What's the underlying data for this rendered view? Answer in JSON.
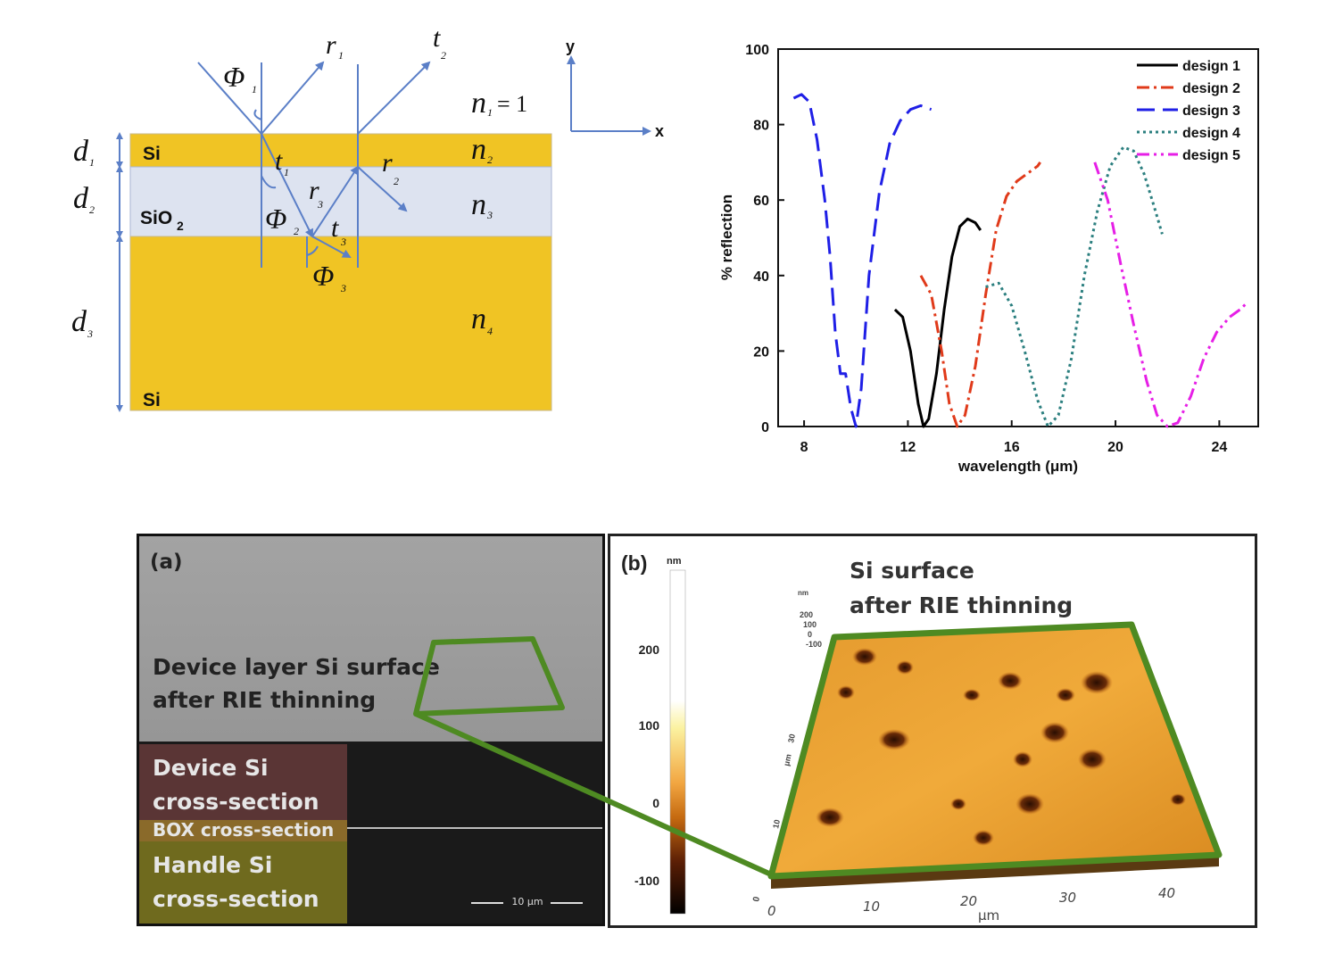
{
  "diagram": {
    "layers": [
      {
        "material": "Si",
        "thickness": "d1",
        "index": "n2"
      },
      {
        "material": "SiO2",
        "thickness": "d2",
        "index": "n3"
      },
      {
        "material": "Si",
        "thickness": "d3",
        "index": "n4"
      }
    ],
    "ambient_index": "n1 = 1",
    "labels": {
      "phi1": "Φ",
      "phi1_sub": "1",
      "phi2": "Φ",
      "phi2_sub": "2",
      "phi3": "Φ",
      "phi3_sub": "3",
      "r1": "r",
      "r1_sub": "1",
      "t2": "t",
      "t2_sub": "2",
      "t1": "t",
      "t1_sub": "1",
      "r2": "r",
      "r2_sub": "2",
      "r3": "r",
      "r3_sub": "3",
      "t3": "t",
      "t3_sub": "3",
      "n1": "n",
      "n1_sub": "1",
      "n1_eq": "= 1",
      "n2": "n",
      "n2_sub": "2",
      "n3": "n",
      "n3_sub": "3",
      "n4": "n",
      "n4_sub": "4",
      "d1": "d",
      "d1_sub": "1",
      "d2": "d",
      "d2_sub": "2",
      "d3": "d",
      "d3_sub": "3",
      "si_top": "Si",
      "sio2": "SiO",
      "sio2_sub": "2",
      "si_bottom": "Si"
    },
    "axes": {
      "x": "x",
      "y": "y"
    },
    "colors": {
      "si": "#f0c424",
      "sio2": "#dde3f0",
      "ray": "#5b7fc7"
    }
  },
  "chart_data": {
    "type": "line",
    "xlabel": "wavelength (μm)",
    "ylabel": "% reflection",
    "xlim": [
      7,
      25.5
    ],
    "ylim": [
      0,
      100
    ],
    "xticks": [
      8,
      12,
      16,
      20,
      24
    ],
    "yticks": [
      0,
      20,
      40,
      60,
      80,
      100
    ],
    "grid": false,
    "legend_position": "top-right",
    "series": [
      {
        "name": "design 1",
        "color": "#000000",
        "dash": "",
        "x": [
          11.5,
          11.8,
          12.1,
          12.4,
          12.6,
          12.8,
          13.1,
          13.4,
          13.7,
          14.0,
          14.3,
          14.6,
          14.8
        ],
        "y": [
          31,
          29,
          20,
          6,
          0,
          2,
          14,
          31,
          45,
          53,
          55,
          54,
          52
        ]
      },
      {
        "name": "design 2",
        "color": "#e03a1a",
        "dash": "14,5,3,5",
        "x": [
          12.5,
          12.9,
          13.3,
          13.6,
          13.9,
          14.2,
          14.6,
          15.0,
          15.4,
          15.8,
          16.2,
          16.6,
          17.0,
          17.1
        ],
        "y": [
          40,
          35,
          20,
          6,
          0,
          3,
          16,
          35,
          52,
          61,
          65,
          67,
          69,
          70
        ]
      },
      {
        "name": "design 3",
        "color": "#1f1fe6",
        "dash": "20,9",
        "x": [
          7.6,
          7.9,
          8.2,
          8.5,
          8.8,
          9.0,
          9.2,
          9.4,
          9.6,
          9.8,
          10.0,
          10.2,
          10.5,
          10.9,
          11.3,
          11.7,
          12.1,
          12.5,
          12.9
        ],
        "y": [
          87,
          88,
          86,
          76,
          60,
          45,
          25,
          14,
          14,
          5,
          0,
          10,
          40,
          62,
          75,
          81,
          84,
          85,
          84
        ]
      },
      {
        "name": "design 4",
        "color": "#2b7f7f",
        "dash": "3,4",
        "x": [
          15.0,
          15.5,
          16.0,
          16.5,
          17.0,
          17.4,
          17.8,
          18.3,
          18.8,
          19.3,
          19.8,
          20.3,
          20.7,
          21.1,
          21.5,
          21.8
        ],
        "y": [
          37,
          38,
          32,
          20,
          7,
          0,
          3,
          18,
          40,
          57,
          69,
          74,
          73,
          67,
          58,
          51
        ]
      },
      {
        "name": "design 5",
        "color": "#e61fe6",
        "dash": "14,5,3,5,3,5",
        "x": [
          19.2,
          19.7,
          20.2,
          20.7,
          21.2,
          21.6,
          22.0,
          22.4,
          22.9,
          23.4,
          23.9,
          24.4,
          24.8,
          25.1
        ],
        "y": [
          70,
          60,
          43,
          27,
          12,
          3,
          0,
          1,
          8,
          18,
          25,
          29,
          31,
          33
        ]
      }
    ]
  },
  "sem": {
    "tag": "(a)",
    "surface_label_line1": "Device layer Si surface",
    "surface_label_line2": "after RIE thinning",
    "device_line1": "Device Si",
    "device_line2": "cross-section",
    "box": "BOX cross-section",
    "handle_line1": "Handle Si",
    "handle_line2": "cross-section",
    "scalebar": "10 μm"
  },
  "afm": {
    "tag": "(b)",
    "title_line1": "Si surface",
    "title_line2": "after RIE thinning",
    "colorbar_unit": "nm",
    "colorbar_ticks": [
      "200",
      "100",
      "0",
      "-100"
    ],
    "z_unit": "nm",
    "z_ticks": [
      "200",
      "100",
      "0",
      "-100"
    ],
    "x_ticks": [
      "0",
      "10",
      "20",
      "30",
      "40"
    ],
    "x_unit": "μm",
    "y_unit": "μm",
    "y_ticks": [
      "0",
      "10",
      "20",
      "30"
    ],
    "origin_label": "0"
  },
  "colors": {
    "highlight_green": "#4e8a22",
    "device_band": "#5a3535",
    "box_band": "#8a6a2a",
    "handle_band": "#6f6a1e"
  }
}
